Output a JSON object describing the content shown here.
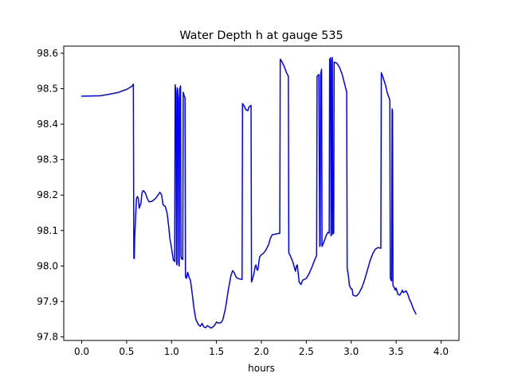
{
  "chart_data": {
    "type": "line",
    "title": "Water Depth h at gauge 535",
    "xlabel": "hours",
    "ylabel": "",
    "xlim": [
      -0.2,
      4.2
    ],
    "ylim": [
      97.79,
      98.62
    ],
    "xticks": [
      0.0,
      0.5,
      1.0,
      1.5,
      2.0,
      2.5,
      3.0,
      3.5,
      4.0
    ],
    "xtick_labels": [
      "0.0",
      "0.5",
      "1.0",
      "1.5",
      "2.0",
      "2.5",
      "3.0",
      "3.5",
      "4.0"
    ],
    "yticks": [
      97.8,
      97.9,
      98.0,
      98.1,
      98.2,
      98.3,
      98.4,
      98.5,
      98.6
    ],
    "ytick_labels": [
      "97.8",
      "97.9",
      "98.0",
      "98.1",
      "98.2",
      "98.3",
      "98.4",
      "98.5",
      "98.6"
    ],
    "grid": false,
    "legend": "none",
    "series": [
      {
        "color": "#0000ff",
        "points": [
          [
            0.0,
            98.479
          ],
          [
            0.2,
            98.48
          ],
          [
            0.3,
            98.484
          ],
          [
            0.4,
            98.489
          ],
          [
            0.5,
            98.498
          ],
          [
            0.56,
            98.507
          ],
          [
            0.575,
            98.513
          ],
          [
            0.58,
            98.022
          ],
          [
            0.585,
            98.021
          ],
          [
            0.59,
            98.08
          ],
          [
            0.6,
            98.14
          ],
          [
            0.61,
            98.19
          ],
          [
            0.62,
            98.196
          ],
          [
            0.63,
            98.19
          ],
          [
            0.64,
            98.163
          ],
          [
            0.66,
            98.178
          ],
          [
            0.67,
            98.205
          ],
          [
            0.68,
            98.212
          ],
          [
            0.69,
            98.212
          ],
          [
            0.71,
            98.205
          ],
          [
            0.73,
            98.19
          ],
          [
            0.75,
            98.181
          ],
          [
            0.78,
            98.182
          ],
          [
            0.82,
            98.19
          ],
          [
            0.85,
            98.2
          ],
          [
            0.87,
            98.208
          ],
          [
            0.89,
            98.2
          ],
          [
            0.905,
            98.173
          ],
          [
            0.93,
            98.168
          ],
          [
            0.95,
            98.15
          ],
          [
            0.97,
            98.108
          ],
          [
            0.98,
            98.08
          ],
          [
            1.0,
            98.05
          ],
          [
            1.02,
            98.017
          ],
          [
            1.035,
            98.013
          ],
          [
            1.04,
            98.511
          ],
          [
            1.05,
            98.49
          ],
          [
            1.055,
            98.01
          ],
          [
            1.06,
            98.003
          ],
          [
            1.065,
            98.502
          ],
          [
            1.075,
            98.472
          ],
          [
            1.08,
            98.01
          ],
          [
            1.085,
            98.0
          ],
          [
            1.09,
            98.498
          ],
          [
            1.1,
            98.508
          ],
          [
            1.105,
            98.03
          ],
          [
            1.11,
            98.02
          ],
          [
            1.12,
            98.022
          ],
          [
            1.125,
            98.018
          ],
          [
            1.13,
            98.49
          ],
          [
            1.14,
            98.48
          ],
          [
            1.15,
            98.475
          ],
          [
            1.155,
            97.97
          ],
          [
            1.165,
            97.965
          ],
          [
            1.18,
            97.982
          ],
          [
            1.195,
            97.968
          ],
          [
            1.21,
            97.96
          ],
          [
            1.23,
            97.922
          ],
          [
            1.25,
            97.88
          ],
          [
            1.27,
            97.85
          ],
          [
            1.3,
            97.834
          ],
          [
            1.32,
            97.83
          ],
          [
            1.34,
            97.838
          ],
          [
            1.36,
            97.828
          ],
          [
            1.38,
            97.826
          ],
          [
            1.4,
            97.832
          ],
          [
            1.42,
            97.828
          ],
          [
            1.44,
            97.825
          ],
          [
            1.46,
            97.828
          ],
          [
            1.48,
            97.833
          ],
          [
            1.5,
            97.842
          ],
          [
            1.52,
            97.839
          ],
          [
            1.55,
            97.84
          ],
          [
            1.57,
            97.848
          ],
          [
            1.6,
            97.88
          ],
          [
            1.63,
            97.93
          ],
          [
            1.66,
            97.972
          ],
          [
            1.68,
            97.987
          ],
          [
            1.7,
            97.98
          ],
          [
            1.72,
            97.968
          ],
          [
            1.75,
            97.964
          ],
          [
            1.785,
            97.962
          ],
          [
            1.79,
            98.458
          ],
          [
            1.8,
            98.455
          ],
          [
            1.83,
            98.44
          ],
          [
            1.85,
            98.438
          ],
          [
            1.86,
            98.448
          ],
          [
            1.87,
            98.45
          ],
          [
            1.885,
            98.453
          ],
          [
            1.89,
            97.955
          ],
          [
            1.9,
            97.962
          ],
          [
            1.92,
            97.982
          ],
          [
            1.93,
            97.998
          ],
          [
            1.94,
            98.003
          ],
          [
            1.95,
            97.99
          ],
          [
            1.96,
            97.988
          ],
          [
            1.98,
            98.025
          ],
          [
            2.0,
            98.032
          ],
          [
            2.02,
            98.035
          ],
          [
            2.05,
            98.045
          ],
          [
            2.08,
            98.06
          ],
          [
            2.1,
            98.078
          ],
          [
            2.12,
            98.088
          ],
          [
            2.16,
            98.09
          ],
          [
            2.19,
            98.092
          ],
          [
            2.205,
            98.092
          ],
          [
            2.21,
            98.583
          ],
          [
            2.22,
            98.58
          ],
          [
            2.25,
            98.565
          ],
          [
            2.28,
            98.545
          ],
          [
            2.3,
            98.535
          ],
          [
            2.305,
            98.037
          ],
          [
            2.32,
            98.03
          ],
          [
            2.35,
            98.012
          ],
          [
            2.37,
            97.993
          ],
          [
            2.38,
            97.985
          ],
          [
            2.39,
            98.0
          ],
          [
            2.4,
            98.003
          ],
          [
            2.41,
            97.98
          ],
          [
            2.42,
            97.955
          ],
          [
            2.44,
            97.948
          ],
          [
            2.46,
            97.96
          ],
          [
            2.5,
            97.965
          ],
          [
            2.53,
            97.978
          ],
          [
            2.56,
            97.995
          ],
          [
            2.59,
            98.015
          ],
          [
            2.615,
            98.03
          ],
          [
            2.62,
            98.535
          ],
          [
            2.64,
            98.54
          ],
          [
            2.65,
            98.055
          ],
          [
            2.655,
            98.06
          ],
          [
            2.66,
            98.54
          ],
          [
            2.67,
            98.555
          ],
          [
            2.675,
            98.055
          ],
          [
            2.7,
            98.07
          ],
          [
            2.72,
            98.085
          ],
          [
            2.74,
            98.095
          ],
          [
            2.755,
            98.093
          ],
          [
            2.76,
            98.583
          ],
          [
            2.77,
            98.587
          ],
          [
            2.775,
            98.085
          ],
          [
            2.78,
            98.087
          ],
          [
            2.785,
            98.578
          ],
          [
            2.79,
            98.588
          ],
          [
            2.795,
            98.09
          ],
          [
            2.8,
            98.095
          ],
          [
            2.805,
            98.093
          ],
          [
            2.81,
            98.575
          ],
          [
            2.84,
            98.572
          ],
          [
            2.87,
            98.56
          ],
          [
            2.9,
            98.54
          ],
          [
            2.93,
            98.51
          ],
          [
            2.95,
            98.49
          ],
          [
            2.955,
            97.995
          ],
          [
            2.97,
            97.97
          ],
          [
            2.98,
            97.945
          ],
          [
            3.0,
            97.935
          ],
          [
            3.01,
            97.935
          ],
          [
            3.02,
            97.918
          ],
          [
            3.05,
            97.915
          ],
          [
            3.07,
            97.918
          ],
          [
            3.09,
            97.925
          ],
          [
            3.12,
            97.94
          ],
          [
            3.15,
            97.962
          ],
          [
            3.18,
            97.988
          ],
          [
            3.21,
            98.015
          ],
          [
            3.24,
            98.035
          ],
          [
            3.27,
            98.048
          ],
          [
            3.3,
            98.052
          ],
          [
            3.33,
            98.05
          ],
          [
            3.335,
            98.545
          ],
          [
            3.35,
            98.535
          ],
          [
            3.38,
            98.512
          ],
          [
            3.4,
            98.49
          ],
          [
            3.43,
            98.468
          ],
          [
            3.435,
            97.968
          ],
          [
            3.44,
            97.962
          ],
          [
            3.45,
            97.958
          ],
          [
            3.455,
            98.443
          ],
          [
            3.46,
            98.435
          ],
          [
            3.465,
            97.945
          ],
          [
            3.48,
            97.938
          ],
          [
            3.49,
            97.932
          ],
          [
            3.5,
            97.938
          ],
          [
            3.52,
            97.92
          ],
          [
            3.54,
            97.918
          ],
          [
            3.55,
            97.922
          ],
          [
            3.57,
            97.932
          ],
          [
            3.58,
            97.925
          ],
          [
            3.6,
            97.928
          ],
          [
            3.61,
            97.93
          ],
          [
            3.63,
            97.92
          ],
          [
            3.65,
            97.905
          ],
          [
            3.67,
            97.895
          ],
          [
            3.69,
            97.88
          ],
          [
            3.72,
            97.865
          ]
        ]
      }
    ]
  }
}
